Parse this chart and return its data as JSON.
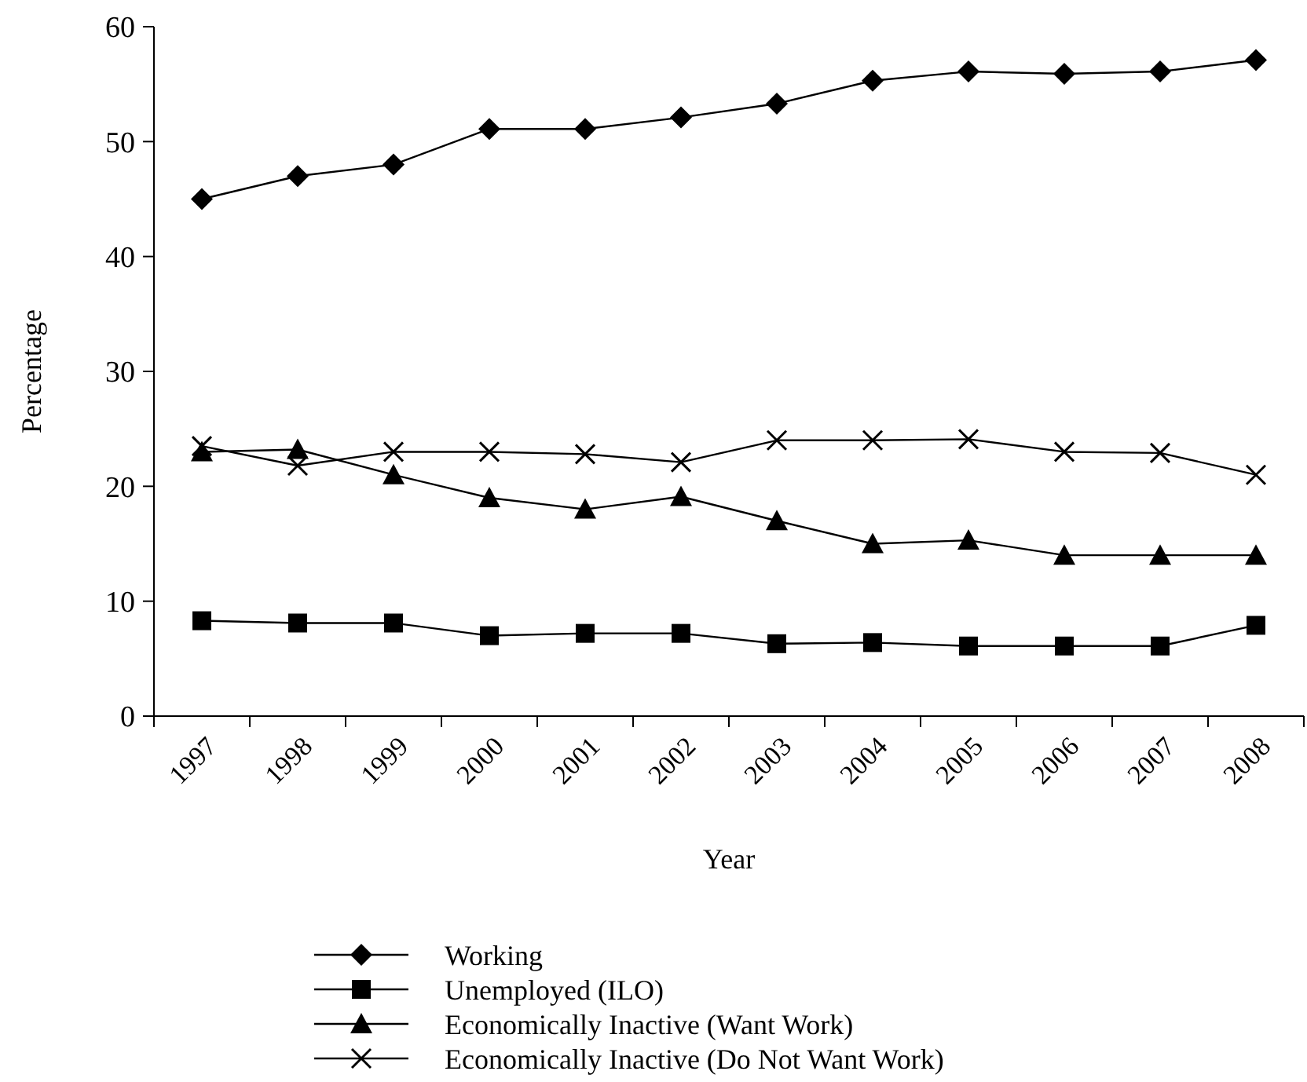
{
  "chart_data": {
    "type": "line",
    "xlabel": "Year",
    "ylabel": "Percentage",
    "categories": [
      "1997",
      "1998",
      "1999",
      "2000",
      "2001",
      "2002",
      "2003",
      "2004",
      "2005",
      "2006",
      "2007",
      "2008"
    ],
    "series": [
      {
        "name": "Working",
        "color": "#000000",
        "marker": "diamond",
        "values": [
          45,
          47,
          48,
          51.1,
          51.1,
          52.1,
          53.3,
          55.3,
          56.1,
          55.9,
          56.1,
          57.1
        ]
      },
      {
        "name": "Unemployed (ILO)",
        "color": "#000000",
        "marker": "square",
        "values": [
          8.3,
          8.1,
          8.1,
          7,
          7.2,
          7.2,
          6.3,
          6.4,
          6.1,
          6.1,
          6.1,
          7.9
        ]
      },
      {
        "name": "Economically Inactive (Want Work)",
        "color": "#000000",
        "marker": "triangle",
        "values": [
          23,
          23.2,
          21,
          19,
          18,
          19.1,
          17,
          15,
          15.3,
          14,
          14,
          14
        ]
      },
      {
        "name": "Economically Inactive (Do Not Want Work)",
        "color": "#000000",
        "marker": "cross",
        "values": [
          23.5,
          21.8,
          23,
          23,
          22.8,
          22.1,
          24,
          24,
          24.1,
          23,
          22.9,
          21
        ]
      }
    ],
    "ylim": [
      0,
      60
    ],
    "yticks": [
      0,
      10,
      20,
      30,
      40,
      50,
      60
    ],
    "legend": "bottom",
    "line_style": "solid"
  }
}
